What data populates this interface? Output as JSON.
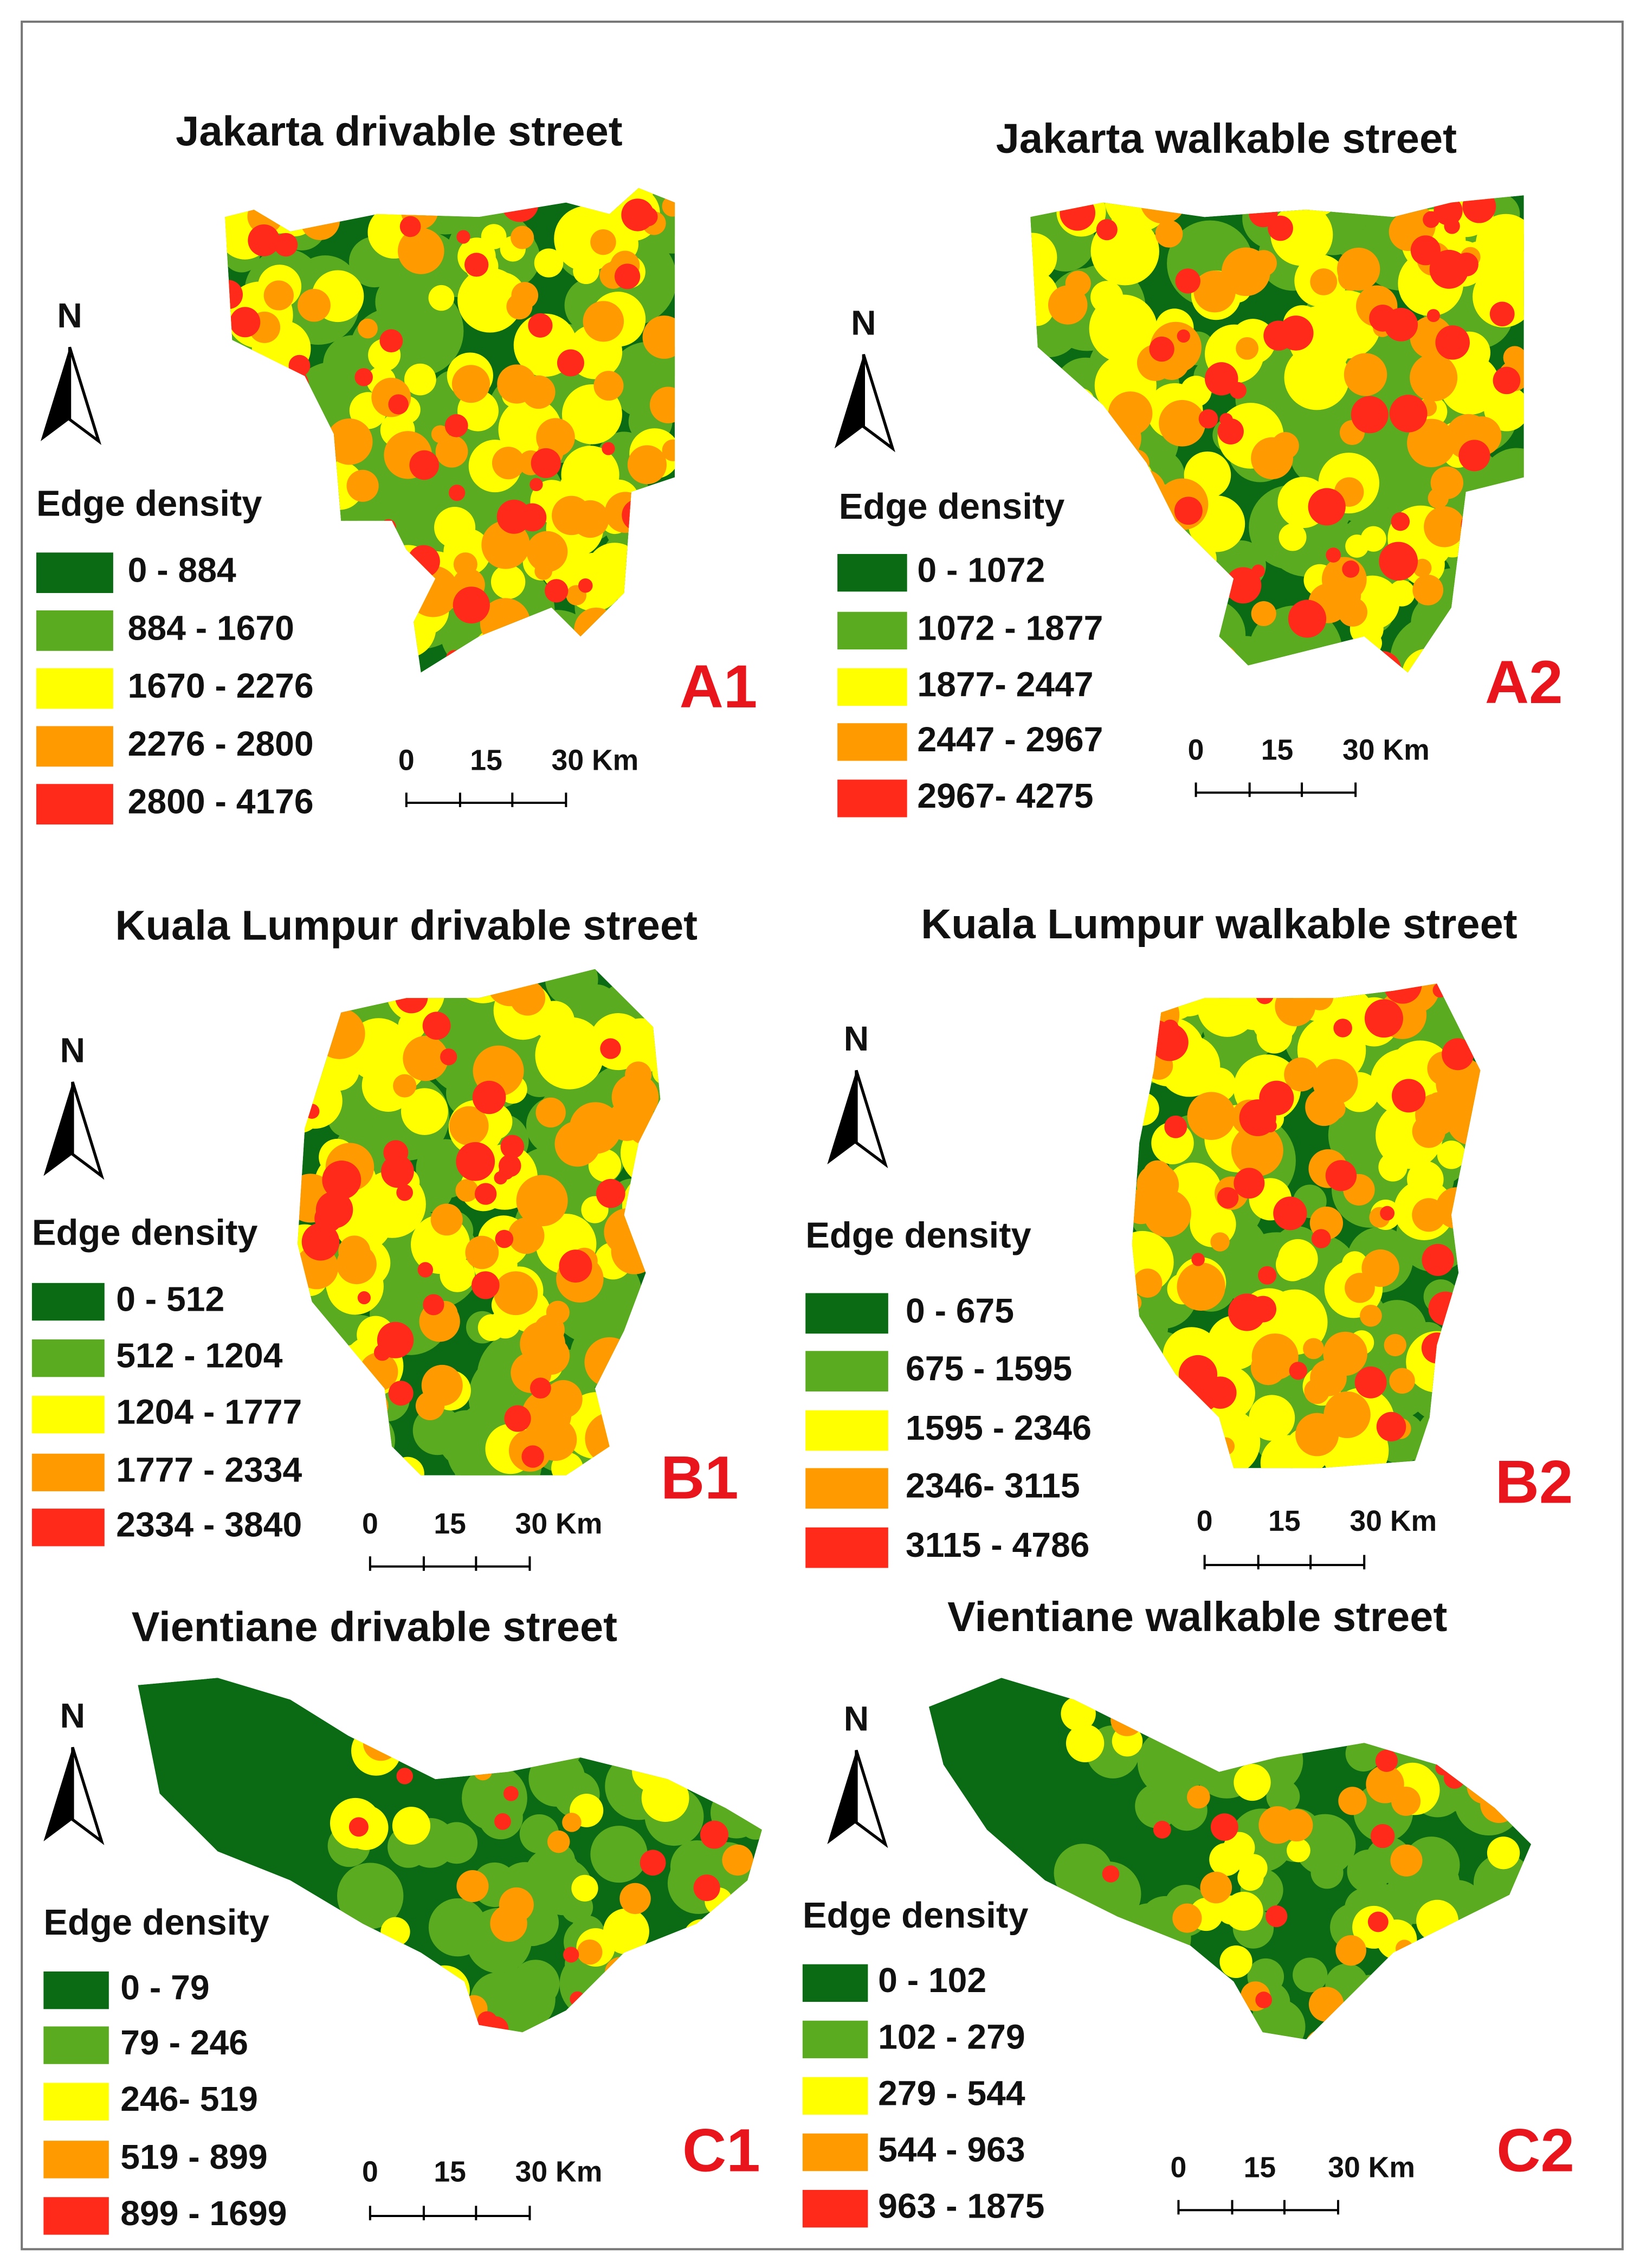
{
  "legend_colors": [
    "#0b6b14",
    "#5aab1f",
    "#ffff00",
    "#ff9a00",
    "#ff2a1a"
  ],
  "panels": [
    {
      "title": "Jakarta drivable street",
      "north": "N",
      "legend_title": "Edge density",
      "legend": [
        "0 - 884",
        "884 - 1670",
        "1670 - 2276",
        "2276 - 2800",
        "2800 - 4176"
      ],
      "scale": [
        "0",
        "15",
        "30 Km"
      ],
      "id": "A1"
    },
    {
      "title": "Jakarta walkable street",
      "north": "N",
      "legend_title": "Edge density",
      "legend": [
        "0 - 1072",
        "1072 - 1877",
        "1877- 2447",
        "2447 - 2967",
        "2967- 4275"
      ],
      "scale": [
        "0",
        "15",
        "30 Km"
      ],
      "id": "A2"
    },
    {
      "title": "Kuala Lumpur drivable street",
      "north": "N",
      "legend_title": "Edge density",
      "legend": [
        "0 - 512",
        "512 - 1204",
        "1204 - 1777",
        "1777 - 2334",
        "2334 - 3840"
      ],
      "scale": [
        "0",
        "15",
        "30 Km"
      ],
      "id": "B1"
    },
    {
      "title": "Kuala Lumpur walkable street",
      "north": "N",
      "legend_title": "Edge density",
      "legend": [
        "0 - 675",
        "675 - 1595",
        "1595 - 2346",
        "2346- 3115",
        "3115 - 4786"
      ],
      "scale": [
        "0",
        "15",
        "30 Km"
      ],
      "id": "B2"
    },
    {
      "title": "Vientiane drivable street",
      "north": "N",
      "legend_title": "Edge density",
      "legend": [
        "0 - 79",
        "79 - 246",
        "246- 519",
        "519 - 899",
        "899 - 1699"
      ],
      "scale": [
        "0",
        "15",
        "30 Km"
      ],
      "id": "C1"
    },
    {
      "title": "Vientiane walkable street",
      "north": "N",
      "legend_title": "Edge density",
      "legend": [
        "0 - 102",
        "102 - 279",
        "279 - 544",
        "544 - 963",
        "963 - 1875"
      ],
      "scale": [
        "0",
        "15",
        "30 Km"
      ],
      "id": "C2"
    }
  ]
}
